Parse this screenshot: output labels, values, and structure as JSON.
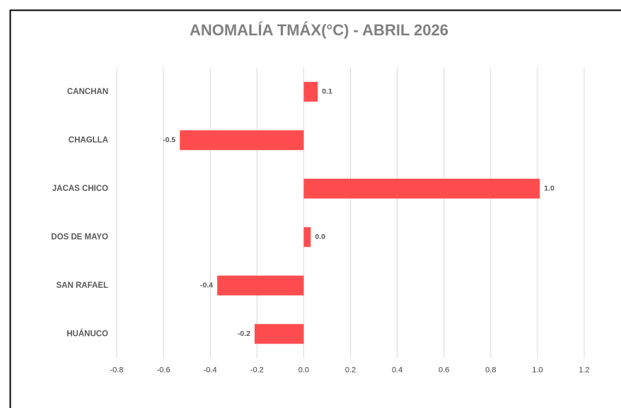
{
  "chart_data": {
    "type": "bar",
    "orientation": "horizontal",
    "title": "ANOMALÍA TMÁX(°C) - ABRIL 2026",
    "categories": [
      "CANCHAN",
      "CHAGLLA",
      "JACAS CHICO",
      "DOS DE MAYO",
      "SAN RAFAEL",
      "HUÁNUCO"
    ],
    "values": [
      0.06,
      -0.53,
      1.01,
      0.03,
      -0.37,
      -0.21
    ],
    "value_labels": [
      "0.1",
      "-0.5",
      "1.0",
      "0.0",
      "-0.4",
      "-0.2"
    ],
    "color": "#ff4d4f",
    "xlim": [
      -0.8,
      1.2
    ],
    "xticks": [
      -0.8,
      -0.6,
      -0.4,
      -0.2,
      {
        "value": 0,
        "label": "0.0"
      },
      0.2,
      0.4,
      0.6,
      0.8,
      {
        "value": 1,
        "label": "1.0"
      },
      1.2
    ],
    "grid": true
  }
}
